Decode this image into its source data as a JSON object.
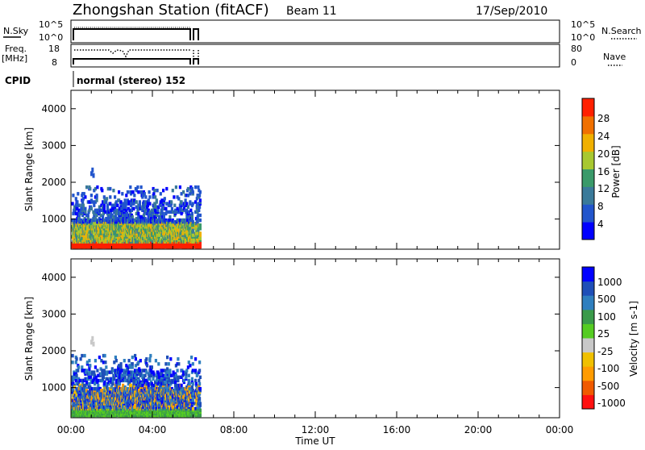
{
  "header": {
    "station": "Zhongshan Station (fitACF)",
    "beam": "Beam 11",
    "date": "17/Sep/2010"
  },
  "status_panels": {
    "nsky_label": "N.Sky",
    "nsky_ticks": [
      "10^5",
      "10^0"
    ],
    "nsearch_label": "N.Search",
    "freq_label": "Freq.",
    "freq_unit": "[MHz]",
    "freq_ticks": [
      "18",
      "8"
    ],
    "nave_label": "Nave",
    "nave_ticks": [
      "80",
      "0"
    ],
    "cpid_label": "CPID",
    "cpid_value": "normal (stereo) 152"
  },
  "colors": {
    "power_scale": [
      "#0000ff",
      "#2255cc",
      "#3a7a9a",
      "#3a9a6a",
      "#a8c830",
      "#f0b000",
      "#f07000",
      "#ff2000"
    ],
    "velocity_scale": [
      "#ff1010",
      "#f05a00",
      "#ff9b00",
      "#f0c000",
      "#c8c8c8",
      "#55cc22",
      "#3a9a4a",
      "#2f7fbf",
      "#1f4fb8",
      "#0000ff"
    ]
  },
  "chart_data": [
    {
      "type": "heatmap",
      "panel": "power",
      "ylabel": "Slant Range [km]",
      "yticks": [
        "1000",
        "2000",
        "3000",
        "4000"
      ],
      "ylim": [
        180,
        4500
      ],
      "xlabel": "Time UT",
      "xticks": [
        "00:00",
        "04:00",
        "08:00",
        "12:00",
        "16:00",
        "20:00",
        "00:00"
      ],
      "xlim": [
        0,
        24
      ],
      "colorbar_label": "Power [dB]",
      "colorbar_ticks": [
        "4",
        "8",
        "12",
        "16",
        "20",
        "24",
        "28"
      ],
      "data_extent_hours": [
        0,
        6.3
      ],
      "dominant_band_km": [
        300,
        400
      ],
      "max_echo_range_km": 2450
    },
    {
      "type": "heatmap",
      "panel": "velocity",
      "ylabel": "Slant Range [km]",
      "yticks": [
        "1000",
        "2000",
        "3000",
        "4000"
      ],
      "ylim": [
        180,
        4500
      ],
      "xlabel": "Time UT",
      "xticks": [
        "00:00",
        "04:00",
        "08:00",
        "12:00",
        "16:00",
        "20:00",
        "00:00"
      ],
      "xlim": [
        0,
        24
      ],
      "colorbar_label": "Velocity [m s-1]",
      "colorbar_ticks": [
        "1000",
        "500",
        "100",
        "25",
        "-25",
        "-100",
        "-500",
        "-1000"
      ],
      "data_extent_hours": [
        0,
        6.3
      ],
      "max_echo_range_km": 2450
    }
  ]
}
